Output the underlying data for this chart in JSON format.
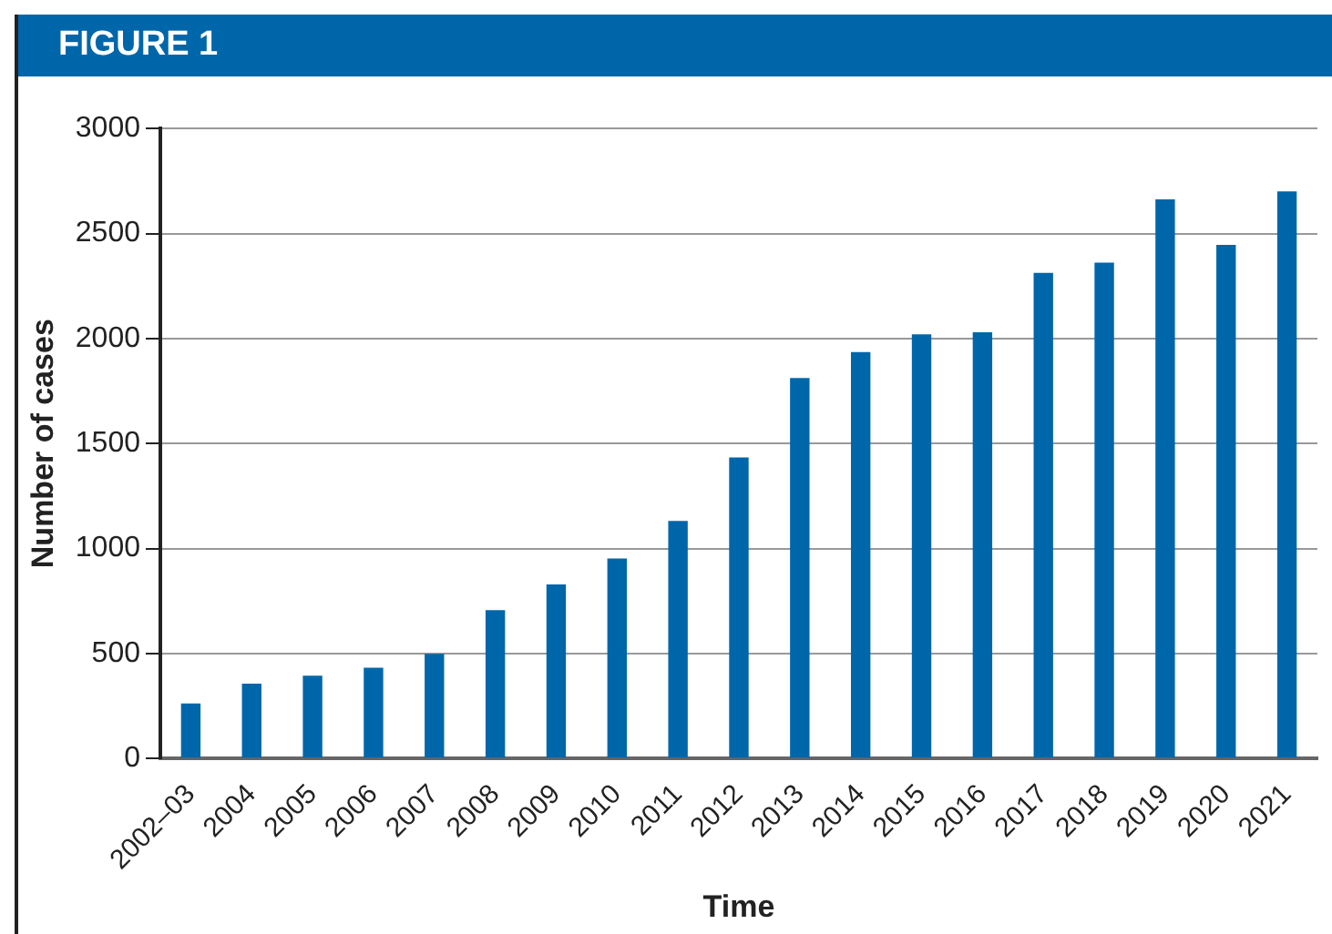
{
  "chart_data": {
    "type": "bar",
    "title": "FIGURE 1",
    "xlabel": "Time",
    "ylabel": "Number of cases",
    "categories": [
      "2002–03",
      "2004",
      "2005",
      "2006",
      "2007",
      "2008",
      "2009",
      "2010",
      "2011",
      "2012",
      "2013",
      "2014",
      "2015",
      "2016",
      "2017",
      "2018",
      "2019",
      "2020",
      "2021"
    ],
    "values": [
      262,
      356,
      394,
      432,
      498,
      706,
      829,
      952,
      1131,
      1434,
      1812,
      1935,
      2020,
      2030,
      2313,
      2361,
      2663,
      2446,
      2701
    ],
    "color": "#0066aa",
    "ylim": [
      0,
      3000
    ],
    "yticks": [
      0,
      500,
      1000,
      1500,
      2000,
      2500,
      3000
    ],
    "grid": "y"
  }
}
